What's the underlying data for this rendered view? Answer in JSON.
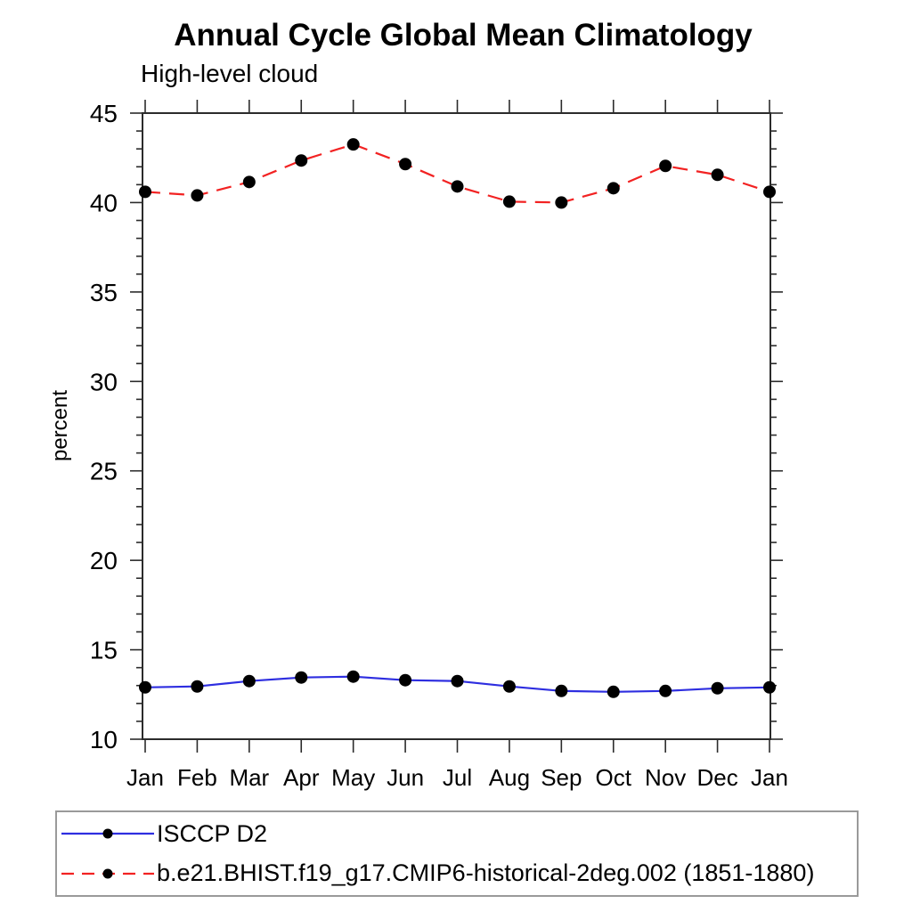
{
  "page": {
    "background": "#ffffff"
  },
  "chart_data": {
    "type": "line",
    "title": "Annual Cycle Global Mean Climatology",
    "subtitle": "High-level cloud",
    "xlabel": "",
    "ylabel": "percent",
    "categories": [
      "Jan",
      "Feb",
      "Mar",
      "Apr",
      "May",
      "Jun",
      "Jul",
      "Aug",
      "Sep",
      "Oct",
      "Nov",
      "Dec",
      "Jan"
    ],
    "ylim": [
      10,
      45
    ],
    "yticks": [
      10,
      15,
      20,
      25,
      30,
      35,
      40,
      45
    ],
    "ytick_minor_step": 1,
    "grid": false,
    "legend_position": "bottom-left boxed",
    "axis_color": "#2b2b2b",
    "legend_border_color": "#9a9a9a",
    "series": [
      {
        "name": "ISCCP D2",
        "line_style": "solid",
        "color": "#2e2ee0",
        "marker": "filled-circle",
        "marker_color": "#000000",
        "values": [
          12.9,
          12.95,
          13.25,
          13.45,
          13.5,
          13.3,
          13.25,
          12.95,
          12.7,
          12.65,
          12.7,
          12.85,
          12.9
        ]
      },
      {
        "name": "b.e21.BHIST.f19_g17.CMIP6-historical-2deg.002 (1851-1880)",
        "line_style": "dashed",
        "color": "#f22222",
        "marker": "filled-circle",
        "marker_color": "#000000",
        "values": [
          40.6,
          40.4,
          41.15,
          42.35,
          43.25,
          42.15,
          40.9,
          40.05,
          40.0,
          40.8,
          42.05,
          41.55,
          40.6
        ]
      }
    ]
  }
}
